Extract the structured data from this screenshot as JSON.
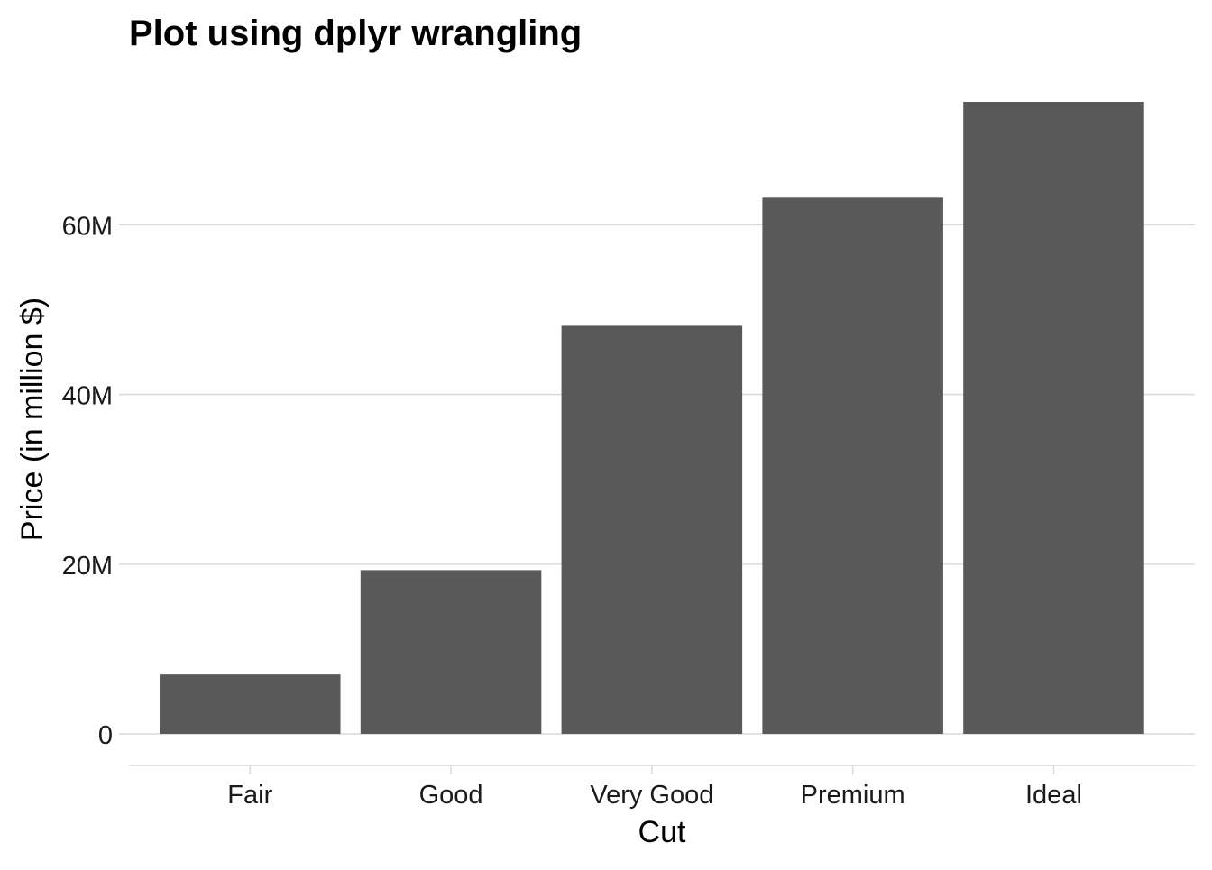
{
  "chart_data": {
    "type": "bar",
    "title": "Plot using dplyr wrangling",
    "xlabel": "Cut",
    "ylabel": "Price (in million $)",
    "categories": [
      "Fair",
      "Good",
      "Very Good",
      "Premium",
      "Ideal"
    ],
    "values": [
      7.0,
      19.3,
      48.1,
      63.2,
      74.5
    ],
    "value_unit": "million $",
    "ylim": [
      0,
      74.5
    ],
    "yticks": [
      0,
      20,
      40,
      60
    ],
    "ytick_labels": [
      "0",
      "20M",
      "40M",
      "60M"
    ],
    "grid": "horizontal major gridlines",
    "bar_color": "#595959",
    "grid_color": "#d9d9d9",
    "background": "#ffffff"
  }
}
